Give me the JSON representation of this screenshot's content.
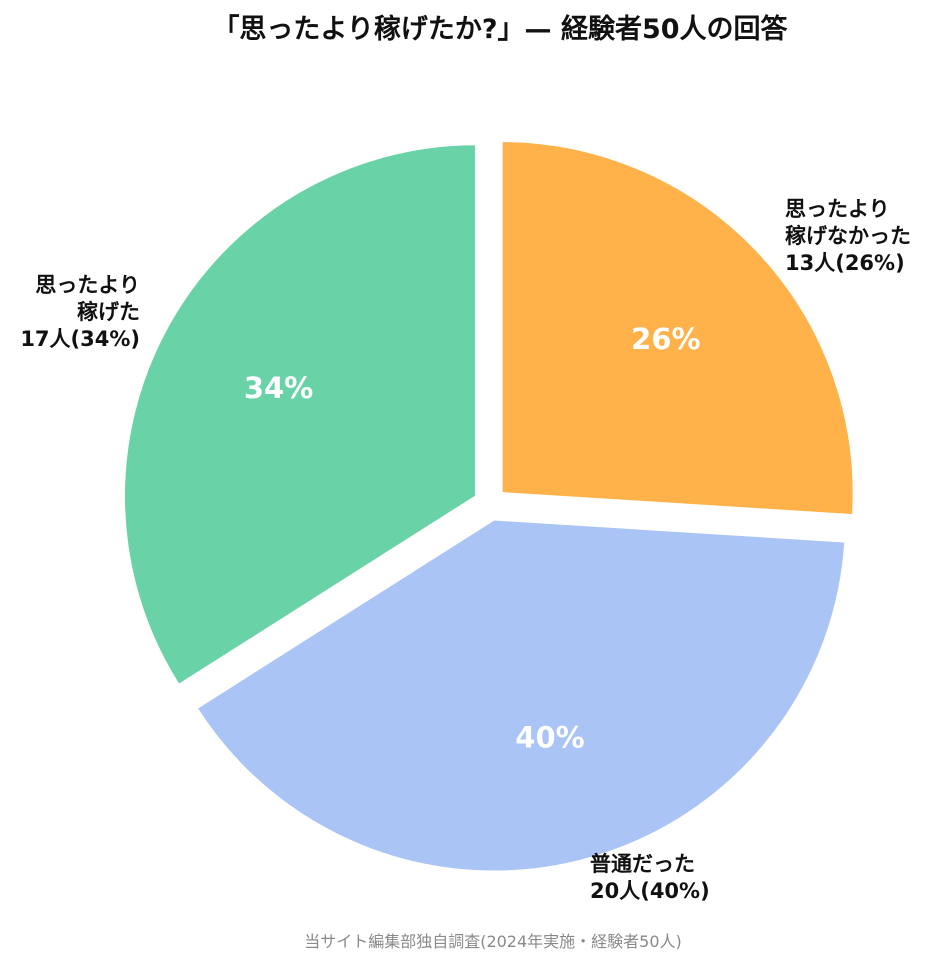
{
  "chart_data": {
    "type": "pie",
    "title": "「思ったより稼げたか?」— 経験者50人の回答",
    "slices": [
      {
        "key": "less",
        "label_lines": [
          "思ったより",
          "稼げなかった",
          "13人(26%)"
        ],
        "count": 13,
        "percent": 26,
        "percent_label": "26%",
        "color": "#FFB14A"
      },
      {
        "key": "normal",
        "label_lines": [
          "普通だった",
          "20人(40%)"
        ],
        "count": 20,
        "percent": 40,
        "percent_label": "40%",
        "color": "#A9C4F5"
      },
      {
        "key": "more",
        "label_lines": [
          "思ったより",
          "稼げた",
          "17人(34%)"
        ],
        "count": 17,
        "percent": 34,
        "percent_label": "34%",
        "color": "#69D3A7"
      }
    ],
    "source": "当サイト編集部独自調査(2024年実施・経験者50人)"
  }
}
